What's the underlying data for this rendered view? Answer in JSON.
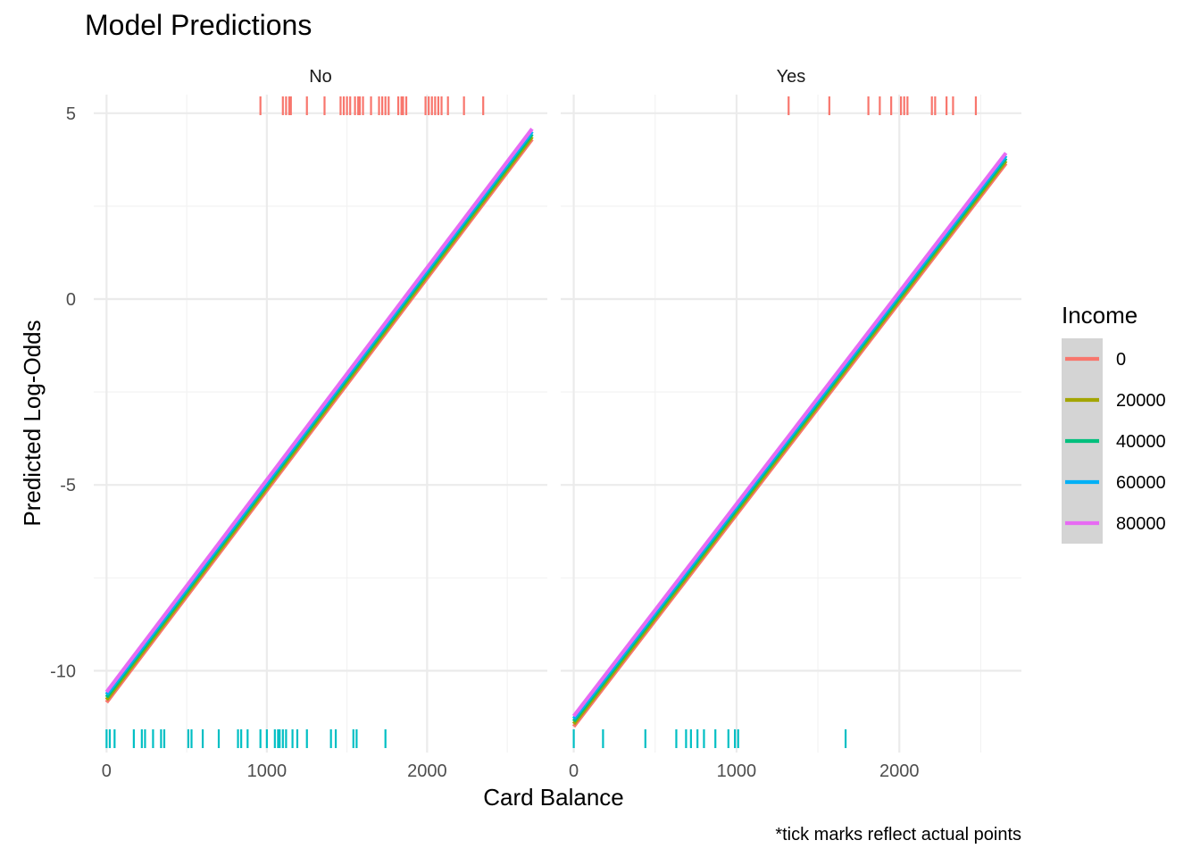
{
  "chart_data": {
    "type": "line",
    "title": "Model Predictions",
    "xlabel": "Card Balance",
    "ylabel": "Predicted Log-Odds",
    "caption": "*tick marks reflect actual points",
    "xlim": [
      -80,
      2750
    ],
    "ylim": [
      -12.2,
      5.5
    ],
    "x_ticks": [
      0,
      1000,
      2000
    ],
    "x_tick_labels": [
      "0",
      "1000",
      "2000"
    ],
    "y_ticks": [
      5,
      0,
      -5,
      -10
    ],
    "y_tick_labels": [
      "5",
      "0",
      "-5",
      "-10"
    ],
    "grid": true,
    "legend": {
      "title": "Income",
      "position": "right",
      "entries": [
        "0",
        "20000",
        "40000",
        "60000",
        "80000"
      ]
    },
    "colors": {
      "0": "#F8766D",
      "20000": "#A3A500",
      "40000": "#00BF7D",
      "60000": "#00B0F6",
      "80000": "#E76BF3",
      "rug_top": "#F8766D",
      "rug_bottom": "#00BFC4"
    },
    "facets": [
      {
        "label": "No",
        "series": [
          {
            "name": "0",
            "x": [
              0,
              2655
            ],
            "y": [
              -10.85,
              4.3
            ]
          },
          {
            "name": "20000",
            "x": [
              0,
              2655
            ],
            "y": [
              -10.78,
              4.37
            ]
          },
          {
            "name": "40000",
            "x": [
              0,
              2655
            ],
            "y": [
              -10.71,
              4.44
            ]
          },
          {
            "name": "60000",
            "x": [
              0,
              2655
            ],
            "y": [
              -10.64,
              4.51
            ]
          },
          {
            "name": "80000",
            "x": [
              0,
              2655
            ],
            "y": [
              -10.57,
              4.58
            ]
          }
        ],
        "rug_top": [
          960,
          1100,
          1120,
          1140,
          1150,
          1250,
          1360,
          1460,
          1480,
          1500,
          1520,
          1550,
          1570,
          1580,
          1600,
          1650,
          1700,
          1720,
          1740,
          1760,
          1820,
          1840,
          1850,
          1870,
          1990,
          2010,
          2030,
          2050,
          2070,
          2090,
          2130,
          2230,
          2350
        ],
        "rug_bottom": [
          0,
          20,
          50,
          170,
          220,
          240,
          290,
          340,
          360,
          510,
          530,
          600,
          700,
          820,
          840,
          880,
          960,
          1000,
          1050,
          1070,
          1080,
          1100,
          1120,
          1160,
          1190,
          1250,
          1400,
          1430,
          1540,
          1560,
          1740
        ]
      },
      {
        "label": "Yes",
        "series": [
          {
            "name": "0",
            "x": [
              0,
              2655
            ],
            "y": [
              -11.5,
              3.65
            ]
          },
          {
            "name": "20000",
            "x": [
              0,
              2655
            ],
            "y": [
              -11.43,
              3.72
            ]
          },
          {
            "name": "40000",
            "x": [
              0,
              2655
            ],
            "y": [
              -11.36,
              3.79
            ]
          },
          {
            "name": "60000",
            "x": [
              0,
              2655
            ],
            "y": [
              -11.29,
              3.86
            ]
          },
          {
            "name": "80000",
            "x": [
              0,
              2655
            ],
            "y": [
              -11.22,
              3.93
            ]
          }
        ],
        "rug_top": [
          1320,
          1570,
          1810,
          1880,
          1950,
          2010,
          2030,
          2050,
          2200,
          2220,
          2290,
          2330,
          2470
        ],
        "rug_bottom": [
          0,
          180,
          440,
          630,
          690,
          720,
          760,
          800,
          870,
          950,
          990,
          1010,
          1670
        ]
      }
    ]
  }
}
